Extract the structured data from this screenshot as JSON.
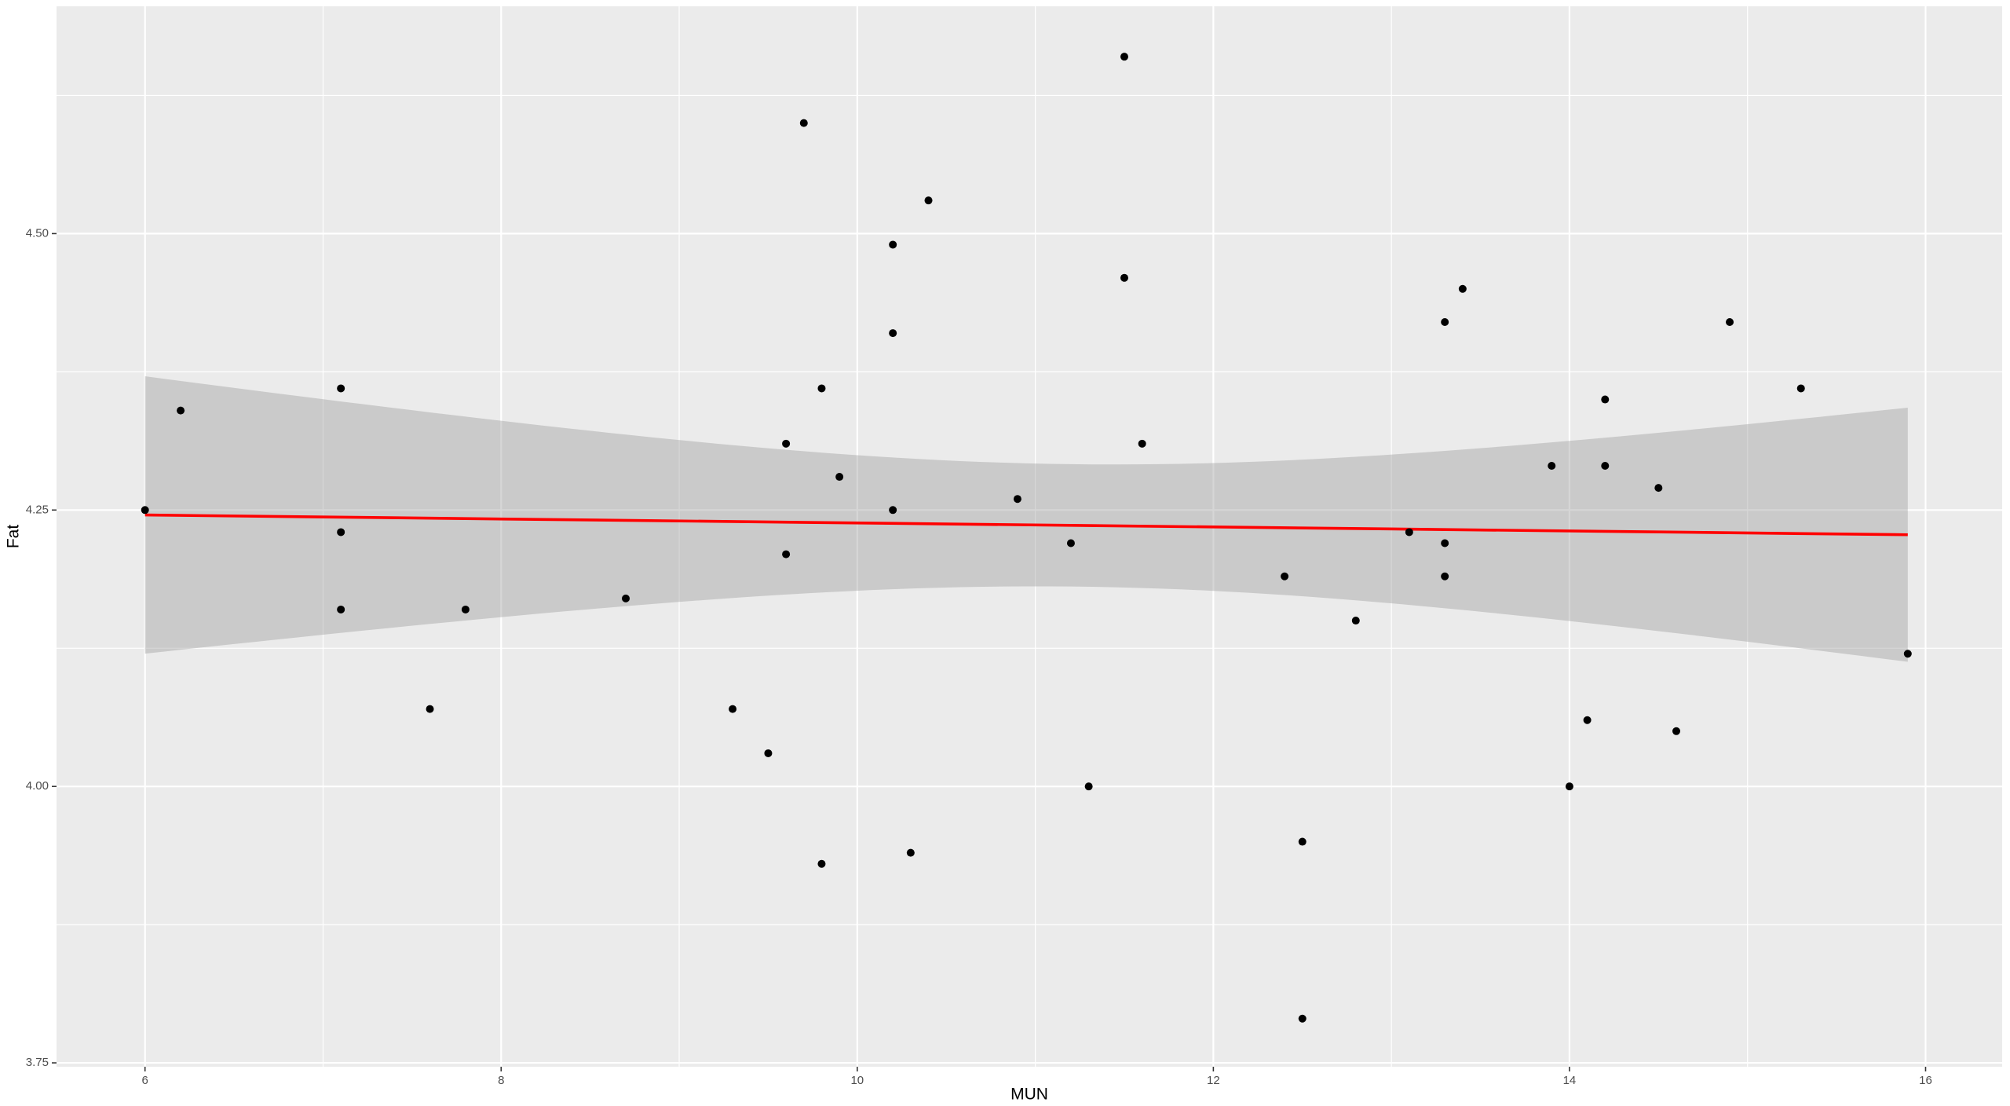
{
  "chart_data": {
    "type": "scatter",
    "x_label": "MUN",
    "y_label": "Fat",
    "x": [
      6.0,
      6.2,
      7.1,
      7.1,
      7.1,
      7.6,
      7.8,
      8.7,
      9.3,
      9.5,
      9.6,
      9.6,
      9.7,
      9.8,
      9.8,
      9.9,
      10.2,
      10.2,
      10.2,
      10.3,
      10.4,
      10.9,
      11.2,
      11.3,
      11.5,
      11.5,
      11.6,
      12.4,
      12.5,
      12.5,
      12.8,
      13.1,
      13.3,
      13.3,
      13.3,
      13.4,
      13.9,
      14.0,
      14.1,
      14.2,
      14.2,
      14.5,
      14.6,
      14.9,
      15.3,
      15.9
    ],
    "values": [
      4.25,
      4.34,
      4.36,
      4.23,
      4.16,
      4.07,
      4.16,
      4.17,
      4.07,
      4.03,
      4.31,
      4.21,
      4.6,
      4.36,
      3.93,
      4.28,
      4.49,
      4.41,
      4.25,
      3.94,
      4.53,
      4.26,
      4.22,
      4.0,
      4.66,
      4.46,
      4.31,
      4.19,
      3.95,
      3.79,
      4.15,
      4.23,
      4.42,
      4.22,
      4.19,
      4.45,
      4.29,
      4.0,
      4.06,
      4.35,
      4.29,
      4.27,
      4.05,
      4.42,
      4.36,
      4.12
    ],
    "color": "#000000",
    "xlim": [
      5.503,
      16.43
    ],
    "ylim": [
      3.7465,
      4.7056
    ],
    "xticks": [
      6,
      8,
      10,
      12,
      14,
      16
    ],
    "yticks": [
      3.75,
      {
        "value": 4,
        "label": "4.00"
      },
      4.25,
      {
        "value": 4.5,
        "label": "4.50"
      }
    ],
    "grid": true,
    "trend_line": {
      "color": "#ff0000",
      "band_color": "#999999"
    }
  }
}
